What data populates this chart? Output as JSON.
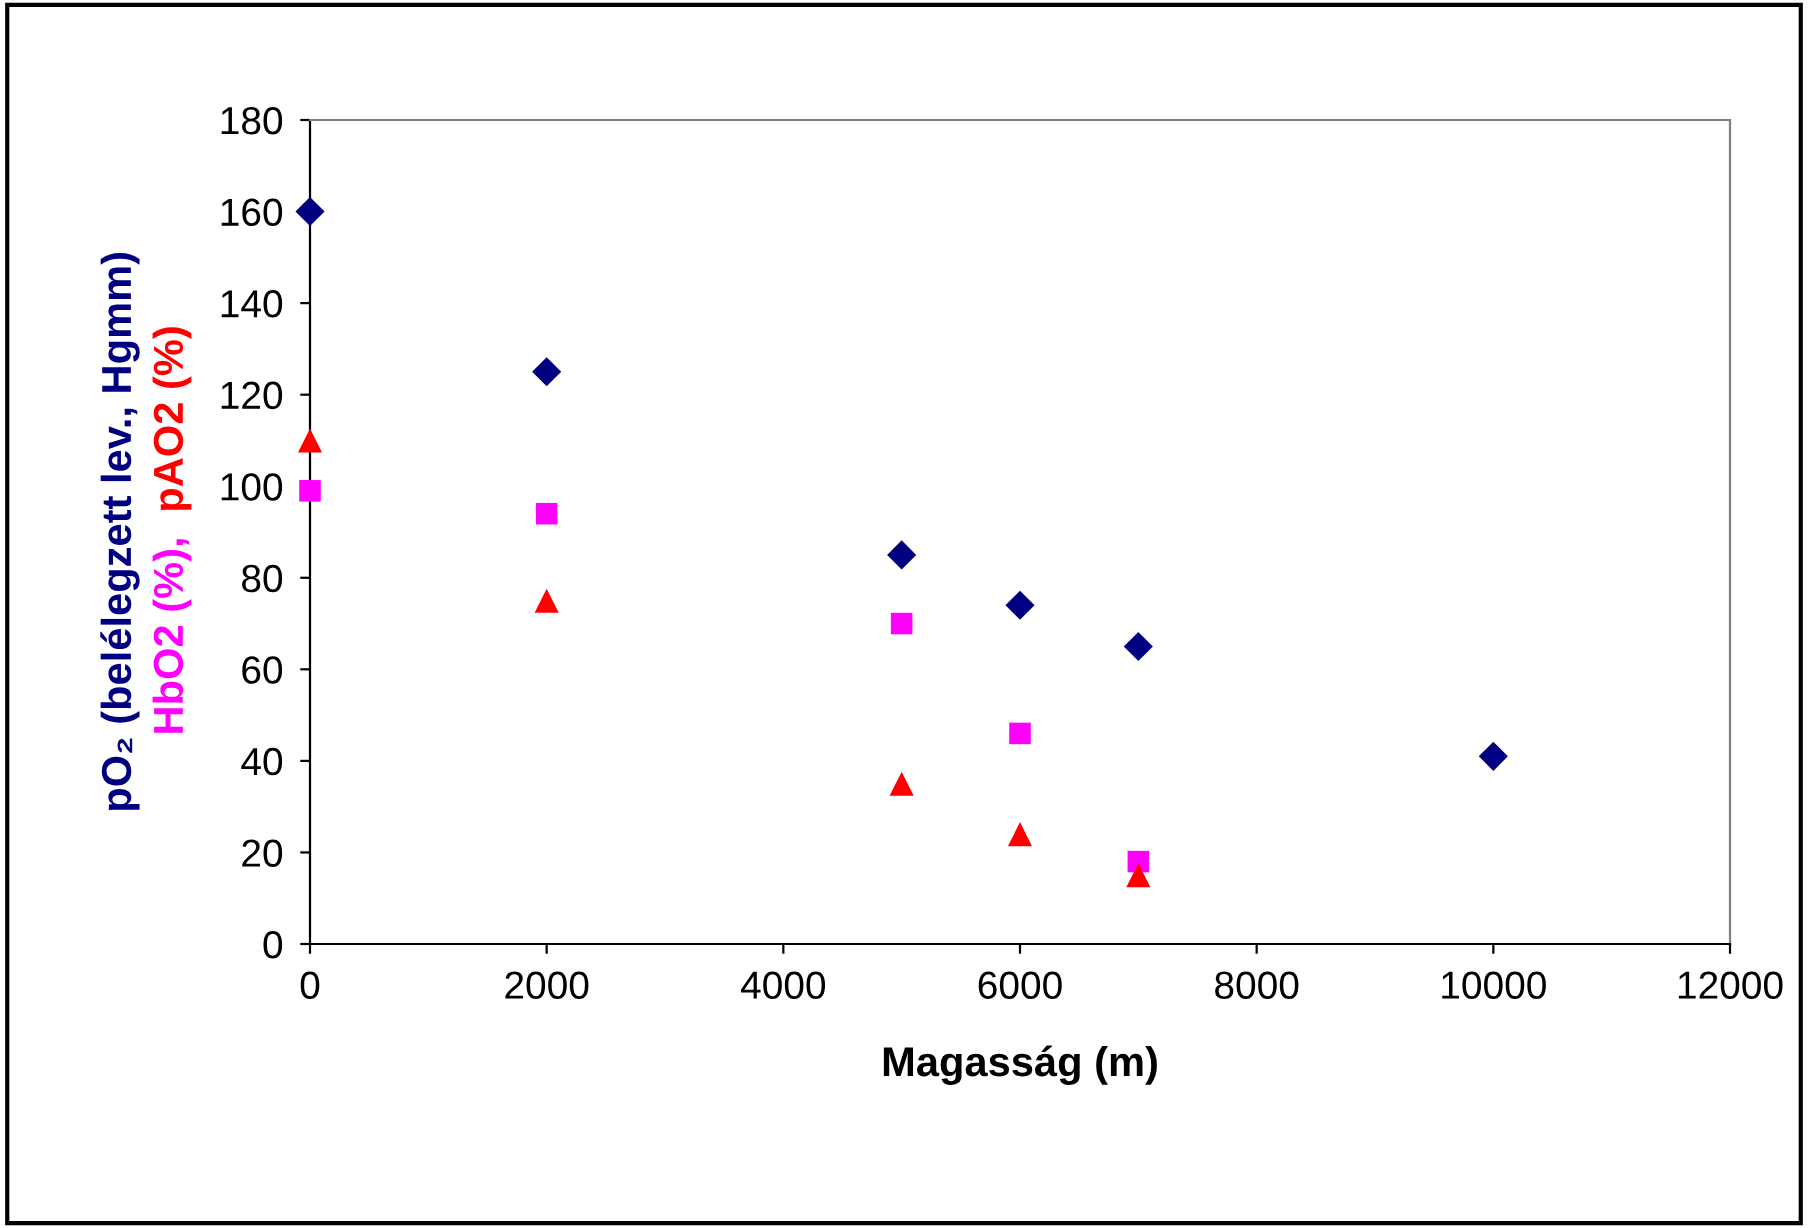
{
  "chart_data": {
    "type": "scatter",
    "xlabel": "Magasság (m)",
    "ylabel": "pO₂ (belélegzett lev., Hgmm)\nHbO2 (%), pAO2 (%)",
    "xlim": [
      0,
      12000
    ],
    "xticks": [
      0,
      2000,
      4000,
      6000,
      8000,
      10000,
      12000
    ],
    "ylim": [
      0,
      180
    ],
    "yticks": [
      0,
      20,
      40,
      60,
      80,
      100,
      120,
      140,
      160,
      180
    ],
    "grid": false,
    "legend": false,
    "series": [
      {
        "color": "#000080",
        "marker": "diamond",
        "x": [
          0,
          2000,
          5000,
          6000,
          7000,
          10000
        ],
        "values": [
          160,
          125,
          85,
          74,
          65,
          41
        ]
      },
      {
        "color": "#ff00ff",
        "marker": "square",
        "x": [
          0,
          2000,
          5000,
          6000,
          7000
        ],
        "values": [
          99,
          94,
          70,
          46,
          18
        ]
      },
      {
        "color": "#ff0000",
        "marker": "triangle",
        "x": [
          0,
          2000,
          5000,
          6000,
          7000
        ],
        "values": [
          110,
          75,
          35,
          24,
          15
        ]
      }
    ]
  }
}
